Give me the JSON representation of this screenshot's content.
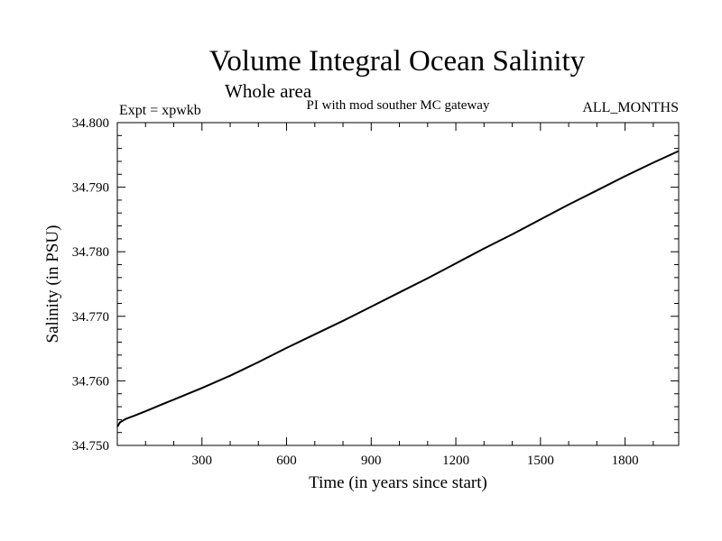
{
  "chart_data": {
    "type": "line",
    "title": "Volume Integral Ocean Salinity",
    "subtitle": "Whole area",
    "experiment_label": "Expt = xpwkb",
    "description": "PI with mod souther MC gateway",
    "months_label": "ALL_MONTHS",
    "xlabel": "Time (in years since start)",
    "ylabel": "Salinity (in PSU)",
    "xlim": [
      0,
      1990
    ],
    "ylim": [
      34.75,
      34.8
    ],
    "x_ticks": [
      300,
      600,
      900,
      1200,
      1500,
      1800
    ],
    "x_tick_labels": [
      "300",
      "600",
      "900",
      "1200",
      "1500",
      "1800"
    ],
    "y_ticks": [
      34.75,
      34.76,
      34.77,
      34.78,
      34.79,
      34.8
    ],
    "y_tick_labels": [
      "34.750",
      "34.760",
      "34.770",
      "34.780",
      "34.790",
      "34.800"
    ],
    "grid": false,
    "series": [
      {
        "name": "xpwkb",
        "color": "#000000",
        "x": [
          0,
          10,
          30,
          60,
          100,
          150,
          200,
          300,
          400,
          500,
          600,
          700,
          800,
          900,
          1000,
          1100,
          1200,
          1300,
          1400,
          1500,
          1600,
          1700,
          1800,
          1900,
          1990
        ],
        "y": [
          34.7529,
          34.7536,
          34.7541,
          34.7546,
          34.7553,
          34.7562,
          34.7571,
          34.7589,
          34.7608,
          34.7629,
          34.7651,
          34.7672,
          34.7693,
          34.7715,
          34.7737,
          34.7759,
          34.7782,
          34.7805,
          34.7827,
          34.785,
          34.7873,
          34.7895,
          34.7917,
          34.7938,
          34.7956
        ]
      }
    ]
  }
}
